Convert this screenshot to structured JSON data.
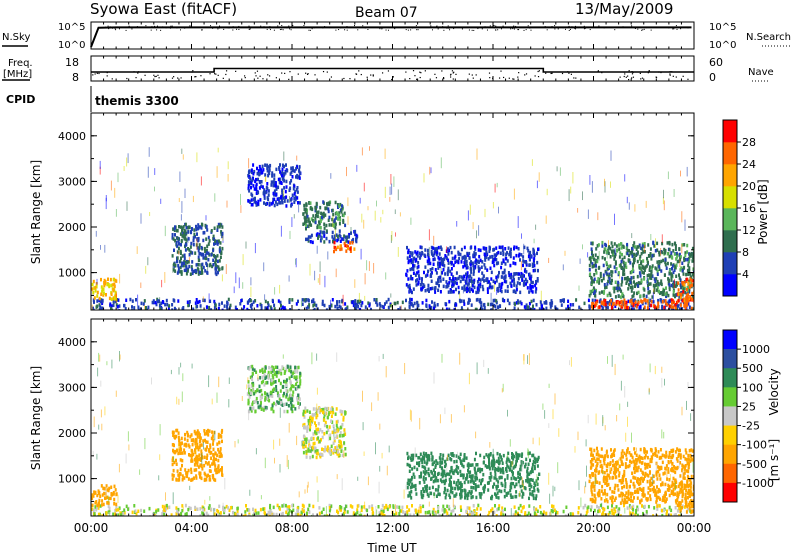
{
  "header": {
    "station": "Syowa East (fitACF)",
    "beam": "Beam 07",
    "date": "13/May/2009"
  },
  "noise_panel": {
    "left_label": "N.Sky",
    "right_label": "N.Search",
    "left_ticks": [
      "10^5",
      "10^0"
    ],
    "right_ticks": [
      "10^5",
      "10^0"
    ]
  },
  "freq_panel": {
    "left_label_1": "Freq.",
    "left_label_2": "[MHz]",
    "right_label": "Nave",
    "left_ticks": [
      "18",
      "8"
    ],
    "right_ticks": [
      "60",
      "0"
    ]
  },
  "cpid": {
    "label": "CPID",
    "value": "themis 3300"
  },
  "x_axis": {
    "label": "Time UT",
    "ticks": [
      "00:00",
      "04:00",
      "08:00",
      "12:00",
      "16:00",
      "20:00",
      "00:00"
    ]
  },
  "power_panel": {
    "ylabel": "Slant Range [km]",
    "yticks": [
      "1000",
      "2000",
      "3000",
      "4000"
    ],
    "colorbar_title": "Power [dB]",
    "colorbar_ticks": [
      "4",
      "8",
      "12",
      "16",
      "20",
      "24",
      "28"
    ],
    "colors": [
      "#0000ff",
      "#1f3fb5",
      "#2f6e4e",
      "#5ab65a",
      "#d7df00",
      "#ffa500",
      "#ff6600",
      "#ff0000"
    ]
  },
  "velocity_panel": {
    "ylabel": "Slant Range [km]",
    "yticks": [
      "1000",
      "2000",
      "3000",
      "4000"
    ],
    "colorbar_title": "Velocity",
    "colorbar_unit": "[m s⁻¹]",
    "colorbar_ticks": [
      "1000",
      "500",
      "100",
      "25",
      "-25",
      "-100",
      "-500",
      "-1000"
    ],
    "colors": [
      "#0000ff",
      "#2c4fa0",
      "#2e8b57",
      "#66cc33",
      "#c8c8c8",
      "#ffd000",
      "#ffa500",
      "#ff6600",
      "#ff0000"
    ]
  },
  "chart_data": [
    {
      "type": "line",
      "panel": "noise",
      "series": [
        {
          "name": "N.Sky",
          "x": [
            0,
            0.3,
            1,
            4,
            8,
            12,
            16,
            20,
            23.9
          ],
          "y_log10": [
            0,
            4.2,
            4.25,
            4.25,
            4.25,
            4.25,
            4.25,
            4.25,
            4.25
          ]
        }
      ],
      "ylim_log10": [
        0,
        5
      ],
      "xlim_hours": [
        0,
        24
      ]
    },
    {
      "type": "line",
      "panel": "frequency",
      "series": [
        {
          "name": "Freq",
          "x": [
            0,
            4.9,
            4.9,
            18,
            18,
            24
          ],
          "y": [
            11.5,
            11.5,
            13,
            13,
            11.5,
            11.5
          ]
        }
      ],
      "ylim": [
        8,
        18
      ],
      "xlim_hours": [
        0,
        24
      ]
    },
    {
      "type": "heatmap",
      "panel": "power",
      "xlim_hours": [
        0,
        24
      ],
      "ylim_km": [
        180,
        4500
      ],
      "clim_dB": [
        0,
        32
      ],
      "regions": [
        {
          "t0": 0,
          "t1": 24,
          "r0": 180,
          "r1": 450,
          "value": 6
        },
        {
          "t0": 0,
          "t1": 1,
          "r0": 450,
          "r1": 900,
          "value": 20
        },
        {
          "t0": 3.2,
          "t1": 5.2,
          "r0": 1000,
          "r1": 2100,
          "value": 8
        },
        {
          "t0": 6.2,
          "t1": 8.3,
          "r0": 2500,
          "r1": 3400,
          "value": 5
        },
        {
          "t0": 8.4,
          "t1": 10.1,
          "r0": 2000,
          "r1": 2600,
          "value": 10
        },
        {
          "t0": 8.5,
          "t1": 10.6,
          "r0": 1700,
          "r1": 1950,
          "value": 6
        },
        {
          "t0": 9.6,
          "t1": 10.5,
          "r0": 1500,
          "r1": 1700,
          "value": 26
        },
        {
          "t0": 12.5,
          "t1": 17.8,
          "r0": 600,
          "r1": 1600,
          "value": 5
        },
        {
          "t0": 19.8,
          "t1": 24,
          "r0": 250,
          "r1": 450,
          "value": 27
        },
        {
          "t0": 19.8,
          "t1": 24,
          "r0": 500,
          "r1": 1700,
          "value": 10
        },
        {
          "t0": 23.3,
          "t1": 24,
          "r0": 400,
          "r1": 900,
          "value": 26
        }
      ]
    },
    {
      "type": "heatmap",
      "panel": "velocity",
      "xlim_hours": [
        0,
        24
      ],
      "ylim_km": [
        180,
        4500
      ],
      "clim_ms": [
        -1000,
        1000
      ],
      "regions": [
        {
          "t0": 0,
          "t1": 24,
          "r0": 180,
          "r1": 450,
          "value": 0
        },
        {
          "t0": 0,
          "t1": 1,
          "r0": 450,
          "r1": 900,
          "value": -300
        },
        {
          "t0": 3.2,
          "t1": 5.2,
          "r0": 1000,
          "r1": 2100,
          "value": -400
        },
        {
          "t0": 6.2,
          "t1": 8.3,
          "r0": 2500,
          "r1": 3500,
          "value": 60
        },
        {
          "t0": 8.4,
          "t1": 10.1,
          "r0": 1500,
          "r1": 2600,
          "value": 0
        },
        {
          "t0": 12.5,
          "t1": 17.8,
          "r0": 600,
          "r1": 1600,
          "value": 300
        },
        {
          "t0": 19.8,
          "t1": 24,
          "r0": 500,
          "r1": 1700,
          "value": -200
        },
        {
          "t0": 23.3,
          "t1": 24,
          "r0": 300,
          "r1": 900,
          "value": -400
        }
      ]
    }
  ]
}
